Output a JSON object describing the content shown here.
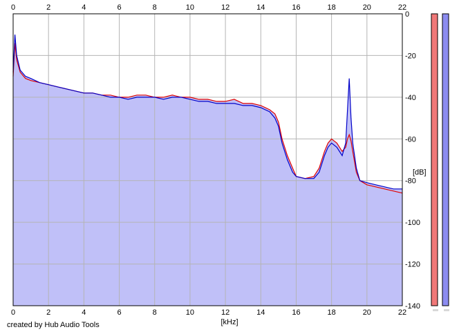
{
  "credit": "created by Hub Audio Tools",
  "colors": {
    "background": "#ffffff",
    "area_fill": "#c0c0f8",
    "grid": "#b4b4b4",
    "left_channel": "#e00000",
    "right_channel": "#0000c8",
    "meter_left": "#f07878",
    "meter_right": "#8c8cf0"
  },
  "chart_data": {
    "type": "line",
    "xlabel": "[kHz]",
    "ylabel": "[dB]",
    "xlim": [
      0,
      22
    ],
    "ylim": [
      -140,
      0
    ],
    "x_ticks": [
      "0",
      "2",
      "4",
      "6",
      "8",
      "10",
      "12",
      "14",
      "16",
      "18",
      "20",
      "22"
    ],
    "y_ticks": [
      "0",
      "-20",
      "-40",
      "-60",
      "-80",
      "-100",
      "-120",
      "-140"
    ],
    "grid": true,
    "series": [
      {
        "color": "#e00000",
        "x": [
          0,
          0.1,
          0.2,
          0.4,
          0.7,
          1,
          1.5,
          2,
          2.5,
          3,
          3.5,
          4,
          4.5,
          5,
          5.5,
          6,
          6.5,
          7,
          7.5,
          8,
          8.5,
          9,
          9.5,
          10,
          10.5,
          11,
          11.5,
          12,
          12.5,
          13,
          13.5,
          14,
          14.5,
          14.8,
          15,
          15.2,
          15.5,
          15.8,
          16,
          16.5,
          17,
          17.3,
          17.6,
          17.8,
          18,
          18.3,
          18.6,
          18.8,
          18.9,
          19,
          19.1,
          19.2,
          19.4,
          19.6,
          20,
          20.5,
          21,
          21.5,
          22
        ],
        "y": [
          -30,
          -14,
          -22,
          -28,
          -31,
          -32,
          -33,
          -34,
          -35,
          -36,
          -37,
          -38,
          -38,
          -39,
          -39,
          -40,
          -40,
          -39,
          -39,
          -40,
          -40,
          -39,
          -40,
          -40,
          -41,
          -41,
          -42,
          -42,
          -41,
          -43,
          -43,
          -44,
          -46,
          -48,
          -52,
          -60,
          -68,
          -74,
          -78,
          -79,
          -78,
          -74,
          -66,
          -62,
          -60,
          -62,
          -66,
          -64,
          -60,
          -58,
          -61,
          -66,
          -76,
          -80,
          -82,
          -83,
          -84,
          -85,
          -86
        ]
      },
      {
        "color": "#0000c8",
        "x": [
          0,
          0.1,
          0.2,
          0.4,
          0.7,
          1,
          1.5,
          2,
          2.5,
          3,
          3.5,
          4,
          4.5,
          5,
          5.5,
          6,
          6.5,
          7,
          7.5,
          8,
          8.5,
          9,
          9.5,
          10,
          10.5,
          11,
          11.5,
          12,
          12.5,
          13,
          13.5,
          14,
          14.5,
          14.8,
          15,
          15.2,
          15.5,
          15.8,
          16,
          16.5,
          17,
          17.3,
          17.6,
          17.8,
          18,
          18.3,
          18.6,
          18.8,
          18.9,
          19,
          19.1,
          19.2,
          19.4,
          19.6,
          20,
          20.5,
          21,
          21.5,
          22
        ],
        "y": [
          -28,
          -10,
          -20,
          -27,
          -30,
          -31,
          -33,
          -34,
          -35,
          -36,
          -37,
          -38,
          -38,
          -39,
          -40,
          -40,
          -41,
          -40,
          -40,
          -40,
          -41,
          -40,
          -40,
          -41,
          -42,
          -42,
          -43,
          -43,
          -43,
          -44,
          -44,
          -45,
          -47,
          -50,
          -54,
          -62,
          -70,
          -76,
          -78,
          -79,
          -79,
          -76,
          -68,
          -64,
          -62,
          -64,
          -68,
          -62,
          -46,
          -31,
          -50,
          -62,
          -74,
          -80,
          -81,
          -82,
          -83,
          -84,
          -84
        ]
      }
    ],
    "level_meters": {
      "left_db": 0,
      "right_db": 0
    }
  }
}
